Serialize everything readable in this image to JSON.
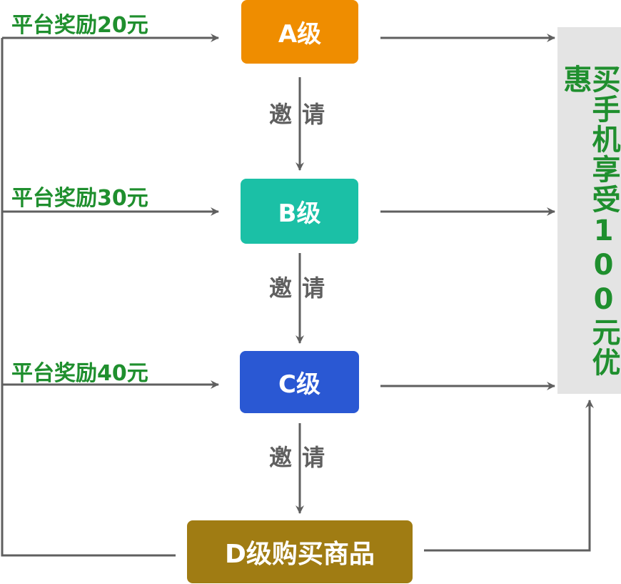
{
  "levels": {
    "a": "A级",
    "b": "B级",
    "c": "C级",
    "d": "D级购买商品"
  },
  "rewards": {
    "a": "平台奖励20元",
    "b": "平台奖励30元",
    "c": "平台奖励40元"
  },
  "invite_label": "邀请",
  "benefit": "买手机享受100元优惠",
  "colors": {
    "level_a": "#ef8d00",
    "level_b": "#1bc0a6",
    "level_c": "#2a58d3",
    "level_d": "#a07c13",
    "reward_text": "#1f8f2e",
    "arrow": "#5f5f5f",
    "benefit_panel": "#e4e4e4"
  }
}
